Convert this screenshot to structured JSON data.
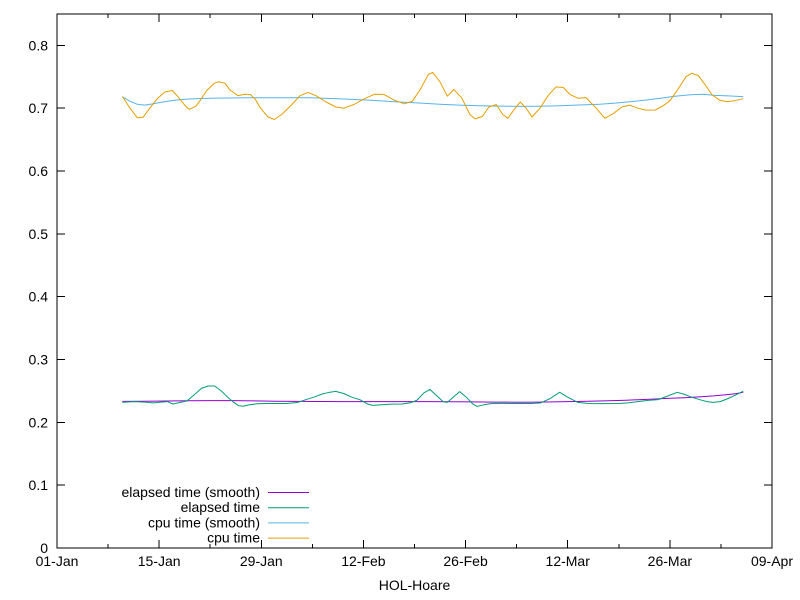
{
  "chart_data": {
    "type": "line",
    "title": "",
    "xlabel": "HOL-Hoare",
    "ylabel": "",
    "background_color": "#ffffff",
    "axis_color": "#000000",
    "grid": false,
    "x_axis": {
      "kind": "date",
      "range_days": [
        0,
        98
      ],
      "tick_labels": [
        "01-Jan",
        "15-Jan",
        "29-Jan",
        "12-Feb",
        "26-Feb",
        "12-Mar",
        "26-Mar",
        "09-Apr"
      ],
      "tick_days": [
        0,
        14,
        28,
        42,
        56,
        70,
        84,
        98
      ],
      "minor_tick_days": [
        7,
        21,
        35,
        49,
        63,
        77,
        91
      ]
    },
    "y_axis": {
      "range": [
        0,
        0.85
      ],
      "tick_labels": [
        "0",
        "0.1",
        "0.2",
        "0.3",
        "0.4",
        "0.5",
        "0.6",
        "0.7",
        "0.8"
      ],
      "tick_values": [
        0,
        0.1,
        0.2,
        0.3,
        0.4,
        0.5,
        0.6,
        0.7,
        0.8
      ]
    },
    "legend": {
      "position": "inside-bottom-left",
      "entries": [
        "elapsed time (smooth)",
        "elapsed time",
        "cpu time (smooth)",
        "cpu time"
      ]
    },
    "series": [
      {
        "name": "elapsed time (smooth)",
        "color": "#9400d3",
        "points": [
          [
            9.0,
            0.2333
          ],
          [
            12.0,
            0.2336
          ],
          [
            15.0,
            0.234
          ],
          [
            18.0,
            0.2344
          ],
          [
            21.0,
            0.2347
          ],
          [
            24.0,
            0.2346
          ],
          [
            27.0,
            0.2342
          ],
          [
            30.0,
            0.2337
          ],
          [
            33.0,
            0.2334
          ],
          [
            36.0,
            0.2332
          ],
          [
            39.0,
            0.2331
          ],
          [
            42.0,
            0.2331
          ],
          [
            45.0,
            0.2331
          ],
          [
            48.0,
            0.2331
          ],
          [
            51.0,
            0.233
          ],
          [
            54.0,
            0.2328
          ],
          [
            57.0,
            0.2325
          ],
          [
            60.0,
            0.2322
          ],
          [
            63.0,
            0.232
          ],
          [
            66.0,
            0.2322
          ],
          [
            69.0,
            0.2328
          ],
          [
            72.0,
            0.2334
          ],
          [
            75.0,
            0.2342
          ],
          [
            78.0,
            0.2352
          ],
          [
            80.0,
            0.2362
          ],
          [
            82.0,
            0.2372
          ],
          [
            84.0,
            0.2383
          ],
          [
            86.0,
            0.2393
          ],
          [
            88.0,
            0.2405
          ],
          [
            90.0,
            0.2421
          ],
          [
            91.5,
            0.2437
          ],
          [
            93.0,
            0.2456
          ],
          [
            94.0,
            0.2477
          ]
        ]
      },
      {
        "name": "elapsed time",
        "color": "#009e73",
        "points": [
          [
            9.0,
            0.232
          ],
          [
            10.7,
            0.233
          ],
          [
            12.3,
            0.232
          ],
          [
            13.2,
            0.231
          ],
          [
            14.1,
            0.232
          ],
          [
            15.1,
            0.233
          ],
          [
            15.9,
            0.2292
          ],
          [
            16.9,
            0.2318
          ],
          [
            17.8,
            0.234
          ],
          [
            18.8,
            0.244
          ],
          [
            19.8,
            0.254
          ],
          [
            20.7,
            0.2578
          ],
          [
            21.6,
            0.2578
          ],
          [
            22.5,
            0.25
          ],
          [
            23.4,
            0.24
          ],
          [
            24.2,
            0.232
          ],
          [
            24.9,
            0.2265
          ],
          [
            25.6,
            0.2258
          ],
          [
            26.4,
            0.228
          ],
          [
            27.4,
            0.2295
          ],
          [
            28.5,
            0.23
          ],
          [
            30.0,
            0.23
          ],
          [
            31.5,
            0.23
          ],
          [
            33.0,
            0.2318
          ],
          [
            34.1,
            0.236
          ],
          [
            35.2,
            0.24
          ],
          [
            36.3,
            0.245
          ],
          [
            37.4,
            0.248
          ],
          [
            38.2,
            0.2492
          ],
          [
            39.3,
            0.246
          ],
          [
            40.4,
            0.24
          ],
          [
            41.5,
            0.236
          ],
          [
            42.6,
            0.229
          ],
          [
            43.3,
            0.227
          ],
          [
            44.5,
            0.228
          ],
          [
            45.9,
            0.229
          ],
          [
            47.3,
            0.2292
          ],
          [
            48.4,
            0.231
          ],
          [
            49.3,
            0.235
          ],
          [
            50.3,
            0.247
          ],
          [
            51.1,
            0.2524
          ],
          [
            51.9,
            0.244
          ],
          [
            52.9,
            0.233
          ],
          [
            53.5,
            0.2318
          ],
          [
            54.3,
            0.24
          ],
          [
            55.2,
            0.249
          ],
          [
            56.1,
            0.24
          ],
          [
            57.0,
            0.229
          ],
          [
            57.6,
            0.2254
          ],
          [
            58.5,
            0.228
          ],
          [
            59.6,
            0.23
          ],
          [
            61.0,
            0.2302
          ],
          [
            62.4,
            0.23
          ],
          [
            63.7,
            0.23
          ],
          [
            65.1,
            0.23
          ],
          [
            66.3,
            0.231
          ],
          [
            67.6,
            0.238
          ],
          [
            68.9,
            0.2478
          ],
          [
            70.0,
            0.24
          ],
          [
            71.4,
            0.2318
          ],
          [
            72.8,
            0.23
          ],
          [
            74.1,
            0.2298
          ],
          [
            75.5,
            0.2298
          ],
          [
            76.9,
            0.23
          ],
          [
            78.3,
            0.231
          ],
          [
            79.6,
            0.233
          ],
          [
            81.0,
            0.235
          ],
          [
            82.4,
            0.2362
          ],
          [
            83.7,
            0.242
          ],
          [
            85.0,
            0.2478
          ],
          [
            85.9,
            0.245
          ],
          [
            87.0,
            0.24
          ],
          [
            88.1,
            0.236
          ],
          [
            89.1,
            0.233
          ],
          [
            89.9,
            0.2318
          ],
          [
            90.9,
            0.233
          ],
          [
            92.0,
            0.238
          ],
          [
            93.1,
            0.244
          ],
          [
            94.0,
            0.2492
          ]
        ]
      },
      {
        "name": "cpu time (smooth)",
        "color": "#56b4e9",
        "points": [
          [
            9.0,
            0.718
          ],
          [
            10.0,
            0.711
          ],
          [
            11.0,
            0.7062
          ],
          [
            12.0,
            0.705
          ],
          [
            13.0,
            0.7068
          ],
          [
            14.5,
            0.71
          ],
          [
            16.0,
            0.7125
          ],
          [
            17.5,
            0.7142
          ],
          [
            19.6,
            0.7155
          ],
          [
            22.0,
            0.7162
          ],
          [
            24.5,
            0.7165
          ],
          [
            27.0,
            0.7168
          ],
          [
            29.5,
            0.7168
          ],
          [
            32.0,
            0.7168
          ],
          [
            34.7,
            0.7166
          ],
          [
            37.5,
            0.7155
          ],
          [
            40.2,
            0.7142
          ],
          [
            43.0,
            0.7126
          ],
          [
            46.0,
            0.7106
          ],
          [
            49.0,
            0.7086
          ],
          [
            52.5,
            0.7062
          ],
          [
            55.5,
            0.7048
          ],
          [
            58.0,
            0.704
          ],
          [
            60.5,
            0.7034
          ],
          [
            63.5,
            0.703
          ],
          [
            66.0,
            0.7032
          ],
          [
            68.9,
            0.704
          ],
          [
            71.5,
            0.7052
          ],
          [
            74.4,
            0.7064
          ],
          [
            76.5,
            0.7082
          ],
          [
            78.5,
            0.7102
          ],
          [
            80.5,
            0.7128
          ],
          [
            82.7,
            0.716
          ],
          [
            84.7,
            0.7192
          ],
          [
            86.8,
            0.7215
          ],
          [
            88.5,
            0.7222
          ],
          [
            90.2,
            0.7205
          ],
          [
            92.0,
            0.7196
          ],
          [
            94.0,
            0.7185
          ]
        ]
      },
      {
        "name": "cpu time",
        "color": "#e69f00",
        "points": [
          [
            9.0,
            0.718
          ],
          [
            10.0,
            0.7
          ],
          [
            11.0,
            0.685
          ],
          [
            11.8,
            0.6858
          ],
          [
            12.7,
            0.7
          ],
          [
            13.8,
            0.716
          ],
          [
            14.8,
            0.726
          ],
          [
            15.8,
            0.7282
          ],
          [
            16.6,
            0.718
          ],
          [
            17.5,
            0.705
          ],
          [
            18.1,
            0.6982
          ],
          [
            19.0,
            0.703
          ],
          [
            19.6,
            0.712
          ],
          [
            20.5,
            0.728
          ],
          [
            21.5,
            0.7392
          ],
          [
            22.1,
            0.742
          ],
          [
            23.0,
            0.74
          ],
          [
            23.7,
            0.7292
          ],
          [
            24.8,
            0.72
          ],
          [
            25.7,
            0.7222
          ],
          [
            26.5,
            0.7218
          ],
          [
            27.2,
            0.714
          ],
          [
            27.9,
            0.7
          ],
          [
            28.9,
            0.6862
          ],
          [
            29.8,
            0.682
          ],
          [
            30.8,
            0.69
          ],
          [
            32.2,
            0.706
          ],
          [
            33.3,
            0.72
          ],
          [
            34.4,
            0.7252
          ],
          [
            35.5,
            0.72
          ],
          [
            36.9,
            0.71
          ],
          [
            38.2,
            0.702
          ],
          [
            39.3,
            0.7
          ],
          [
            40.7,
            0.706
          ],
          [
            42.1,
            0.715
          ],
          [
            43.5,
            0.7222
          ],
          [
            44.8,
            0.722
          ],
          [
            46.2,
            0.713
          ],
          [
            47.6,
            0.707
          ],
          [
            48.7,
            0.711
          ],
          [
            49.8,
            0.73
          ],
          [
            50.9,
            0.754
          ],
          [
            51.5,
            0.757
          ],
          [
            52.5,
            0.742
          ],
          [
            53.5,
            0.7192
          ],
          [
            54.4,
            0.73
          ],
          [
            55.5,
            0.716
          ],
          [
            56.6,
            0.69
          ],
          [
            57.3,
            0.683
          ],
          [
            58.3,
            0.687
          ],
          [
            59.2,
            0.702
          ],
          [
            60.2,
            0.7058
          ],
          [
            61.1,
            0.69
          ],
          [
            61.8,
            0.684
          ],
          [
            62.6,
            0.697
          ],
          [
            63.5,
            0.71
          ],
          [
            64.3,
            0.7
          ],
          [
            65.1,
            0.686
          ],
          [
            66.2,
            0.7
          ],
          [
            67.3,
            0.72
          ],
          [
            68.4,
            0.734
          ],
          [
            69.4,
            0.733
          ],
          [
            70.3,
            0.722
          ],
          [
            71.4,
            0.716
          ],
          [
            72.5,
            0.717
          ],
          [
            73.9,
            0.7
          ],
          [
            75.1,
            0.684
          ],
          [
            76.3,
            0.692
          ],
          [
            77.4,
            0.702
          ],
          [
            78.5,
            0.705
          ],
          [
            79.6,
            0.7
          ],
          [
            80.7,
            0.697
          ],
          [
            82.0,
            0.6972
          ],
          [
            83.1,
            0.704
          ],
          [
            84.0,
            0.712
          ],
          [
            85.1,
            0.73
          ],
          [
            86.2,
            0.75
          ],
          [
            87.0,
            0.7558
          ],
          [
            87.9,
            0.752
          ],
          [
            88.8,
            0.738
          ],
          [
            89.8,
            0.721
          ],
          [
            90.9,
            0.7125
          ],
          [
            91.8,
            0.7105
          ],
          [
            92.9,
            0.712
          ],
          [
            94.0,
            0.715
          ]
        ]
      }
    ]
  }
}
